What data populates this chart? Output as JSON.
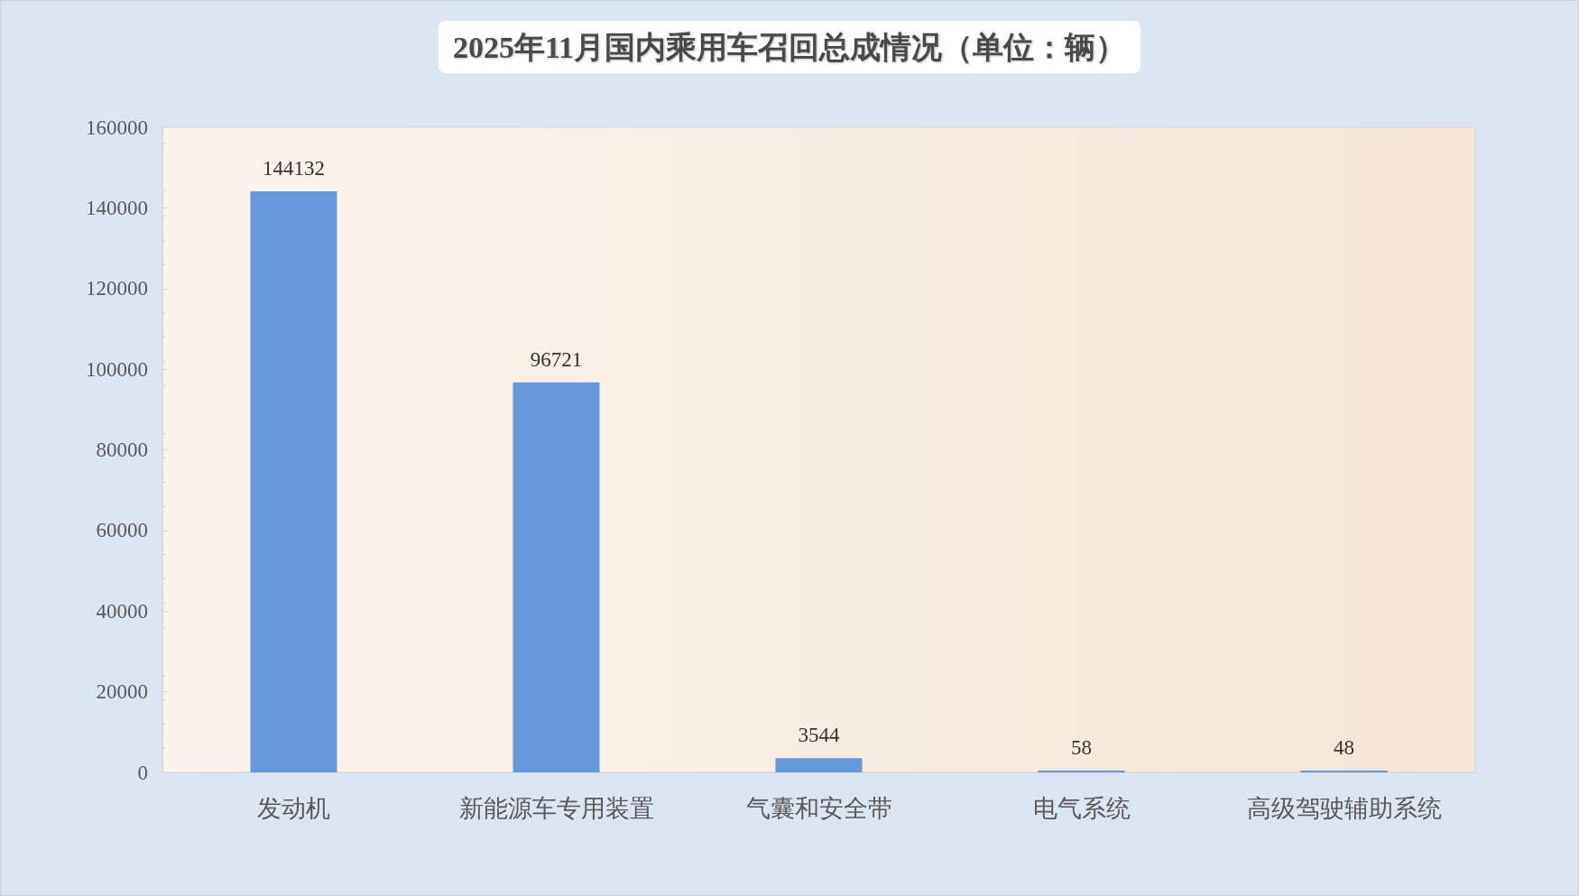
{
  "chart_data": {
    "type": "bar",
    "title": "2025年11月国内乘用车召回总成情况（单位：辆）",
    "categories": [
      "发动机",
      "新能源车专用装置",
      "气囊和安全带",
      "电气系统",
      "高级驾驶辅助系统"
    ],
    "values": [
      144132,
      96721,
      3544,
      58,
      48
    ],
    "color": "#6499dc",
    "ylim": [
      0,
      160000
    ],
    "yticks": [
      0,
      20000,
      40000,
      60000,
      80000,
      100000,
      120000,
      140000,
      160000
    ],
    "data_labels": true
  }
}
